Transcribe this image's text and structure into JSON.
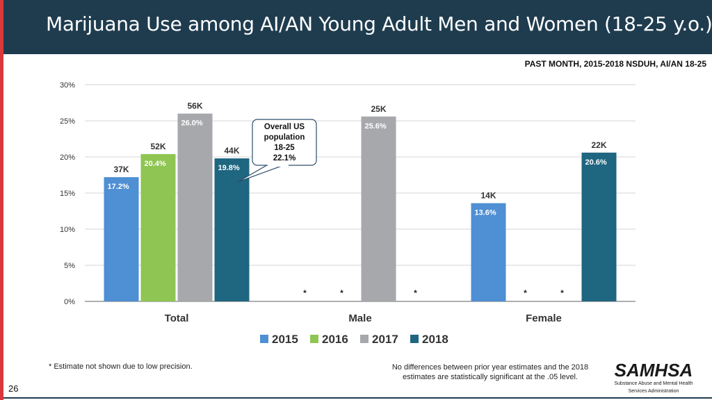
{
  "slide": {
    "title": "Marijuana Use among AI/AN Young Adult Men and Women (18-25 y.o.)",
    "subtitle": "PAST MONTH, 2015-2018 NSDUH, AI/AN 18-25",
    "footnote_left": "* Estimate not shown due to low precision.",
    "footnote_right": "No differences between prior year estimates and the 2018 estimates are statistically significant at the .05 level.",
    "logo_word": "SAMHSA",
    "logo_sub1": "Substance Abuse and Mental Health",
    "logo_sub2": "Services Administration",
    "page_number": "26"
  },
  "chart_data": {
    "type": "bar",
    "categories": [
      "Total",
      "Male",
      "Female"
    ],
    "series": [
      {
        "name": "2015",
        "color": "#4f8fd3",
        "values": [
          17.2,
          null,
          13.6
        ],
        "counts": [
          "37K",
          null,
          "14K"
        ],
        "labels": [
          "17.2%",
          "*",
          "13.6%"
        ]
      },
      {
        "name": "2016",
        "color": "#8fc552",
        "values": [
          20.4,
          null,
          null
        ],
        "counts": [
          "52K",
          null,
          null
        ],
        "labels": [
          "20.4%",
          "*",
          "*"
        ]
      },
      {
        "name": "2017",
        "color": "#a6a8ab",
        "values": [
          26.0,
          25.6,
          null
        ],
        "counts": [
          "56K",
          "25K",
          null
        ],
        "labels": [
          "26.0%",
          "25.6%",
          "*"
        ]
      },
      {
        "name": "2018",
        "color": "#1f6680",
        "values": [
          19.8,
          null,
          20.6
        ],
        "counts": [
          "44K",
          null,
          "22K"
        ],
        "labels": [
          "19.8%",
          "*",
          "20.6%"
        ]
      }
    ],
    "ylim": [
      0,
      30
    ],
    "yticks": [
      "0%",
      "5%",
      "10%",
      "15%",
      "20%",
      "25%",
      "30%"
    ],
    "grid": true,
    "legend_position": "bottom",
    "annotation": {
      "lines": [
        "Overall US",
        "population",
        "18-25",
        "22.1%"
      ]
    }
  }
}
